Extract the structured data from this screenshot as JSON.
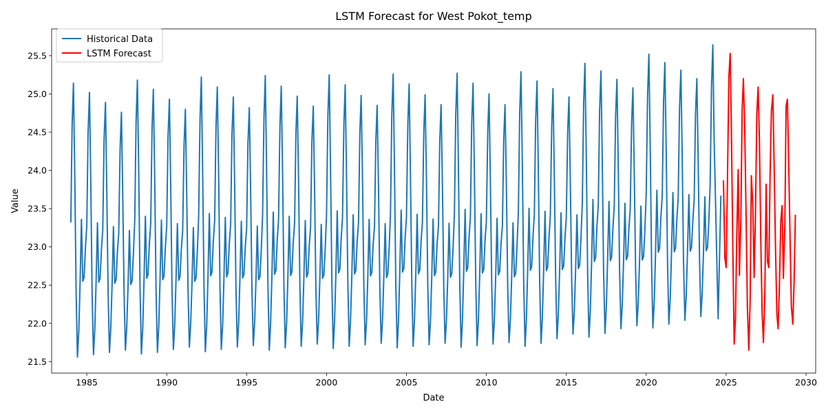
{
  "chart_data": {
    "type": "line",
    "title": "LSTM Forecast for West Pokot_temp",
    "xlabel": "Date",
    "ylabel": "Value",
    "xlim": [
      1982.8,
      2030.6
    ],
    "ylim": [
      21.35,
      25.85
    ],
    "grid": false,
    "legend_position": "top-left",
    "x_ticks": [
      1985,
      1990,
      1995,
      2000,
      2005,
      2010,
      2015,
      2020,
      2025,
      2030
    ],
    "x_tick_labels": [
      "1985",
      "1990",
      "1995",
      "2000",
      "2005",
      "2010",
      "2015",
      "2020",
      "2025",
      "2030"
    ],
    "y_ticks": [
      21.5,
      22.0,
      22.5,
      23.0,
      23.5,
      24.0,
      24.5,
      25.0,
      25.5
    ],
    "y_tick_labels": [
      "21.5",
      "22.0",
      "22.5",
      "23.0",
      "23.5",
      "24.0",
      "24.5",
      "25.0",
      "25.5"
    ],
    "series": [
      {
        "name": "Historical Data",
        "color": "#1f77b4",
        "x_start": 1984.0,
        "x_step_years": 0.0833333,
        "seasonal_profile": [
          23.32,
          24.6,
          25.14,
          23.9,
          22.4,
          21.56,
          21.9,
          22.55,
          23.36,
          22.55,
          22.6,
          23.0
        ],
        "annual_maxima": [
          25.14,
          25.02,
          24.89,
          24.76,
          25.18,
          25.06,
          24.93,
          24.8,
          25.22,
          25.09,
          24.96,
          24.82,
          25.24,
          25.1,
          24.97,
          24.84,
          25.25,
          25.12,
          24.98,
          24.85,
          25.26,
          25.13,
          24.99,
          24.86,
          25.27,
          25.14,
          25.0,
          24.86,
          25.29,
          25.17,
          25.07,
          24.96,
          25.4,
          25.3,
          25.19,
          25.08,
          25.52,
          25.41,
          25.31,
          25.2,
          25.64
        ],
        "annual_minima": [
          21.56,
          21.59,
          21.62,
          21.65,
          21.6,
          21.62,
          21.66,
          21.69,
          21.63,
          21.66,
          21.69,
          21.71,
          21.65,
          21.68,
          21.7,
          21.73,
          21.67,
          21.7,
          21.72,
          21.74,
          21.68,
          21.7,
          21.72,
          21.74,
          21.69,
          21.71,
          21.73,
          21.75,
          21.7,
          21.74,
          21.8,
          21.86,
          21.82,
          21.87,
          21.93,
          21.97,
          21.94,
          21.99,
          22.04,
          22.09,
          22.06
        ],
        "last_points": [
          [
            2024.5,
            22.06
          ],
          [
            2024.67,
            23.67
          ]
        ]
      },
      {
        "name": "LSTM Forecast",
        "color": "#ff0000",
        "points": [
          [
            2024.83,
            23.87
          ],
          [
            2024.92,
            22.85
          ],
          [
            2025.0,
            22.73
          ],
          [
            2025.08,
            23.85
          ],
          [
            2025.17,
            25.22
          ],
          [
            2025.25,
            25.53
          ],
          [
            2025.33,
            24.52
          ],
          [
            2025.42,
            22.94
          ],
          [
            2025.5,
            21.73
          ],
          [
            2025.58,
            22.05
          ],
          [
            2025.67,
            23.2
          ],
          [
            2025.75,
            24.01
          ],
          [
            2025.83,
            22.63
          ],
          [
            2025.92,
            23.36
          ],
          [
            2026.0,
            24.8
          ],
          [
            2026.08,
            25.2
          ],
          [
            2026.17,
            24.47
          ],
          [
            2026.25,
            23.36
          ],
          [
            2026.33,
            22.21
          ],
          [
            2026.42,
            21.65
          ],
          [
            2026.5,
            22.31
          ],
          [
            2026.58,
            23.93
          ],
          [
            2026.67,
            23.55
          ],
          [
            2026.75,
            22.6
          ],
          [
            2026.83,
            23.41
          ],
          [
            2026.92,
            24.74
          ],
          [
            2027.0,
            25.09
          ],
          [
            2027.08,
            24.38
          ],
          [
            2027.17,
            23.07
          ],
          [
            2027.25,
            22.14
          ],
          [
            2027.33,
            21.75
          ],
          [
            2027.42,
            22.41
          ],
          [
            2027.5,
            23.82
          ],
          [
            2027.58,
            22.81
          ],
          [
            2027.67,
            22.73
          ],
          [
            2027.75,
            23.95
          ],
          [
            2027.83,
            24.78
          ],
          [
            2027.92,
            24.99
          ],
          [
            2028.0,
            24.1
          ],
          [
            2028.08,
            23.06
          ],
          [
            2028.17,
            22.13
          ],
          [
            2028.25,
            21.93
          ],
          [
            2028.33,
            22.48
          ],
          [
            2028.42,
            23.35
          ],
          [
            2028.5,
            23.54
          ],
          [
            2028.58,
            22.59
          ],
          [
            2028.67,
            23.27
          ],
          [
            2028.75,
            24.84
          ],
          [
            2028.83,
            24.93
          ],
          [
            2028.92,
            24.0
          ],
          [
            2029.0,
            23.11
          ],
          [
            2029.08,
            22.22
          ],
          [
            2029.17,
            21.99
          ],
          [
            2029.25,
            22.56
          ],
          [
            2029.33,
            23.42
          ]
        ]
      }
    ]
  }
}
